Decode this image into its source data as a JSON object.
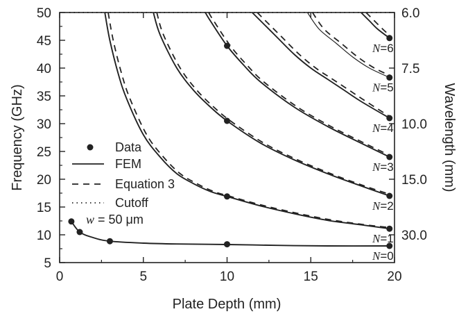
{
  "chart_data": {
    "type": "line",
    "xlabel": "Plate Depth (mm)",
    "ylabel": "Frequency (GHz)",
    "y2label": "Wavelength (mm)",
    "xlim": [
      0,
      20
    ],
    "ylim": [
      5,
      50
    ],
    "x_ticks": [
      0,
      5,
      10,
      15,
      20
    ],
    "y_ticks": [
      5,
      10,
      15,
      20,
      25,
      30,
      35,
      40,
      45,
      50
    ],
    "y2_ticks": [
      {
        "label": "6.0",
        "freq": 50
      },
      {
        "label": "7.5",
        "freq": 40
      },
      {
        "label": "10.0",
        "freq": 30
      },
      {
        "label": "15.0",
        "freq": 20
      },
      {
        "label": "30.0",
        "freq": 10
      }
    ],
    "cutoff_frequency": 50,
    "legend": {
      "position": "center-left",
      "entries": [
        {
          "style": "marker",
          "label": "Data"
        },
        {
          "style": "solid",
          "label": "FEM"
        },
        {
          "style": "dashed",
          "label": "Equation 3"
        },
        {
          "style": "dotted",
          "label": "Cutoff"
        }
      ]
    },
    "annotation": {
      "var": "w",
      "rest": " = 50 μm"
    },
    "modes": [
      {
        "label_prefix": "N",
        "label_suffix": "=0",
        "fem": [
          [
            0.7,
            12.4
          ],
          [
            1.2,
            10.5
          ],
          [
            2,
            9.5
          ],
          [
            3,
            8.85
          ],
          [
            5,
            8.5
          ],
          [
            7,
            8.35
          ],
          [
            10,
            8.25
          ],
          [
            13,
            8.1
          ],
          [
            16,
            8.0
          ],
          [
            19.7,
            8.0
          ]
        ],
        "eq3": [],
        "data": [
          [
            0.7,
            12.4
          ],
          [
            1.2,
            10.5
          ],
          [
            3.0,
            8.85
          ],
          [
            10.0,
            8.3
          ],
          [
            19.7,
            8.0
          ]
        ]
      },
      {
        "label_prefix": "N",
        "label_suffix": "=1",
        "fem": [
          [
            2.7,
            50
          ],
          [
            3,
            45
          ],
          [
            3.5,
            39
          ],
          [
            4,
            34.5
          ],
          [
            5,
            28
          ],
          [
            6,
            24
          ],
          [
            7,
            21
          ],
          [
            8,
            19.2
          ],
          [
            9,
            17.8
          ],
          [
            10,
            16.9
          ],
          [
            12,
            15.2
          ],
          [
            14,
            13.8
          ],
          [
            16,
            12.6
          ],
          [
            18,
            11.8
          ],
          [
            19.7,
            11.1
          ]
        ],
        "eq3": [
          [
            2.9,
            50
          ],
          [
            3.2,
            45
          ],
          [
            3.7,
            39
          ],
          [
            4.2,
            34.5
          ],
          [
            5.2,
            28
          ],
          [
            6.2,
            24
          ],
          [
            7.2,
            21
          ],
          [
            8.2,
            19.2
          ],
          [
            9.2,
            17.8
          ],
          [
            10.2,
            16.9
          ],
          [
            12,
            15.4
          ],
          [
            14,
            14.0
          ],
          [
            16,
            12.8
          ],
          [
            18,
            11.9
          ],
          [
            19.7,
            11.3
          ]
        ],
        "data": [
          [
            10,
            16.9
          ],
          [
            19.7,
            11.1
          ]
        ]
      },
      {
        "label_prefix": "N",
        "label_suffix": "=2",
        "fem": [
          [
            5.6,
            50
          ],
          [
            6,
            46
          ],
          [
            7,
            40
          ],
          [
            8,
            36
          ],
          [
            9,
            33
          ],
          [
            10,
            30.5
          ],
          [
            12,
            26.5
          ],
          [
            14,
            23.5
          ],
          [
            16,
            21.0
          ],
          [
            18,
            18.8
          ],
          [
            19.7,
            17.0
          ]
        ],
        "eq3": [
          [
            5.8,
            50
          ],
          [
            6.2,
            46
          ],
          [
            7.2,
            40
          ],
          [
            8.2,
            36
          ],
          [
            9.2,
            33
          ],
          [
            10.2,
            30.5
          ],
          [
            12.2,
            26.5
          ],
          [
            14.2,
            23.5
          ],
          [
            16.2,
            21.0
          ],
          [
            18.2,
            18.8
          ],
          [
            19.7,
            17.3
          ]
        ],
        "data": [
          [
            10,
            30.5
          ],
          [
            19.7,
            17.0
          ]
        ]
      },
      {
        "label_prefix": "N",
        "label_suffix": "=3",
        "fem": [
          [
            8.7,
            50
          ],
          [
            9,
            48.5
          ],
          [
            10,
            44
          ],
          [
            11,
            40.5
          ],
          [
            12,
            37.5
          ],
          [
            14,
            33
          ],
          [
            16,
            29.5
          ],
          [
            18,
            26.5
          ],
          [
            19.7,
            24.0
          ]
        ],
        "eq3": [
          [
            8.9,
            50
          ],
          [
            9.2,
            48.5
          ],
          [
            10.2,
            44
          ],
          [
            11.2,
            40.5
          ],
          [
            12.2,
            37.5
          ],
          [
            14.2,
            33
          ],
          [
            16.2,
            29.5
          ],
          [
            18.2,
            26.5
          ],
          [
            19.7,
            24.3
          ]
        ],
        "data": [
          [
            10,
            44.0
          ],
          [
            19.7,
            24.0
          ]
        ]
      },
      {
        "label_prefix": "N",
        "label_suffix": "=4",
        "fem": [
          [
            11.5,
            50
          ],
          [
            12,
            48.5
          ],
          [
            13,
            45.5
          ],
          [
            14,
            42.5
          ],
          [
            15,
            40
          ],
          [
            16,
            38
          ],
          [
            17,
            36
          ],
          [
            18,
            34
          ],
          [
            19.7,
            31.0
          ]
        ],
        "eq3": [
          [
            11.8,
            50
          ],
          [
            12.3,
            48.5
          ],
          [
            13.3,
            45.5
          ],
          [
            14.3,
            42.5
          ],
          [
            15.3,
            40
          ],
          [
            16.3,
            38
          ],
          [
            17.3,
            36
          ],
          [
            18.3,
            34
          ],
          [
            19.7,
            31.3
          ]
        ],
        "data": [
          [
            19.7,
            31.0
          ]
        ]
      },
      {
        "label_prefix": "N",
        "label_suffix": "=5",
        "fem": [
          [
            14.8,
            50
          ],
          [
            15.5,
            47
          ],
          [
            16.5,
            44.5
          ],
          [
            17.5,
            42
          ],
          [
            18.5,
            40
          ],
          [
            19.7,
            38.3
          ]
        ],
        "eq3": [
          [
            15.1,
            50
          ],
          [
            15.8,
            47
          ],
          [
            16.8,
            44.5
          ],
          [
            17.8,
            42
          ],
          [
            18.8,
            40
          ],
          [
            19.7,
            38.7
          ]
        ],
        "data": [
          [
            19.7,
            38.3
          ]
        ]
      },
      {
        "label_prefix": "N",
        "label_suffix": "=6",
        "fem": [
          [
            18.0,
            50
          ],
          [
            18.5,
            48.5
          ],
          [
            19.0,
            47
          ],
          [
            19.7,
            45.4
          ]
        ],
        "eq3": [
          [
            18.3,
            50
          ],
          [
            18.8,
            48.5
          ],
          [
            19.3,
            47
          ],
          [
            19.7,
            45.9
          ]
        ],
        "data": [
          [
            19.7,
            45.4
          ]
        ]
      }
    ],
    "colors": {
      "line": "#222222",
      "axis": "#222222"
    }
  }
}
